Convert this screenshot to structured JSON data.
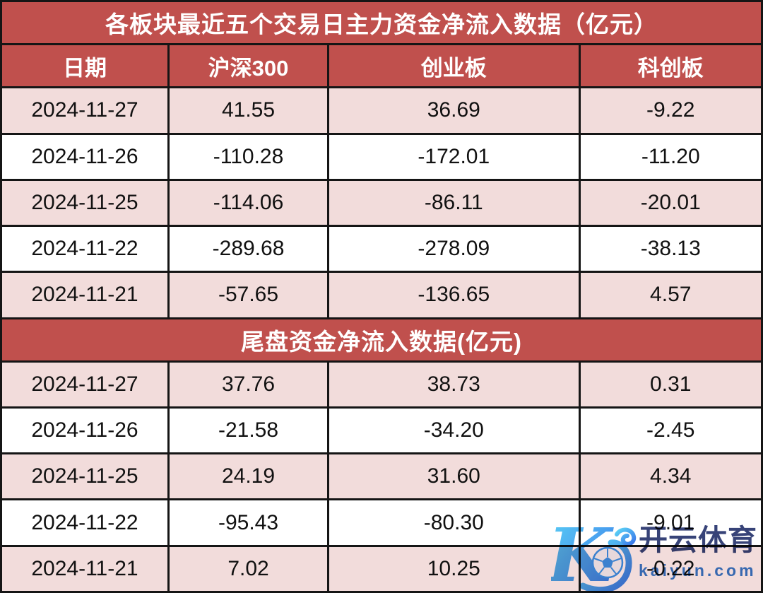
{
  "page_title": "各板块最近五个交易日主力资金净流入数据（亿元）",
  "chart_data": [
    {
      "type": "table",
      "title": "各板块最近五个交易日主力资金净流入数据（亿元）",
      "columns": [
        "日期",
        "沪深300",
        "创业板",
        "科创板"
      ],
      "rows": [
        [
          "2024-11-27",
          "41.55",
          "36.69",
          "-9.22"
        ],
        [
          "2024-11-26",
          "-110.28",
          "-172.01",
          "-11.20"
        ],
        [
          "2024-11-25",
          "-114.06",
          "-86.11",
          "-20.01"
        ],
        [
          "2024-11-22",
          "-289.68",
          "-278.09",
          "-38.13"
        ],
        [
          "2024-11-21",
          "-57.65",
          "-136.65",
          "4.57"
        ]
      ]
    },
    {
      "type": "table",
      "title": "尾盘资金净流入数据(亿元)",
      "columns": [
        "日期",
        "沪深300",
        "创业板",
        "科创板"
      ],
      "rows": [
        [
          "2024-11-27",
          "37.76",
          "38.73",
          "0.31"
        ],
        [
          "2024-11-26",
          "-21.58",
          "-34.20",
          "-2.45"
        ],
        [
          "2024-11-25",
          "24.19",
          "31.60",
          "4.34"
        ],
        [
          "2024-11-22",
          "-95.43",
          "-80.30",
          "-9.01"
        ],
        [
          "2024-11-21",
          "7.02",
          "10.25",
          "-0.22"
        ]
      ]
    }
  ],
  "watermark": {
    "logo": "kaiyun-k-soccer-logo",
    "brand": "开云体育",
    "domain": "kaiyun.com"
  },
  "colors": {
    "header_bg": "#c0504d",
    "row_alt_bg": "#f2dcdb",
    "row_bg": "#ffffff",
    "grid_border": "#151515",
    "header_text": "#ffffff",
    "cell_text": "#111111",
    "watermark_brand": "#27346e",
    "watermark_domain": "#2b6fc9",
    "logo_gradient_start": "#4fd0f5",
    "logo_gradient_end": "#2a6be8"
  }
}
